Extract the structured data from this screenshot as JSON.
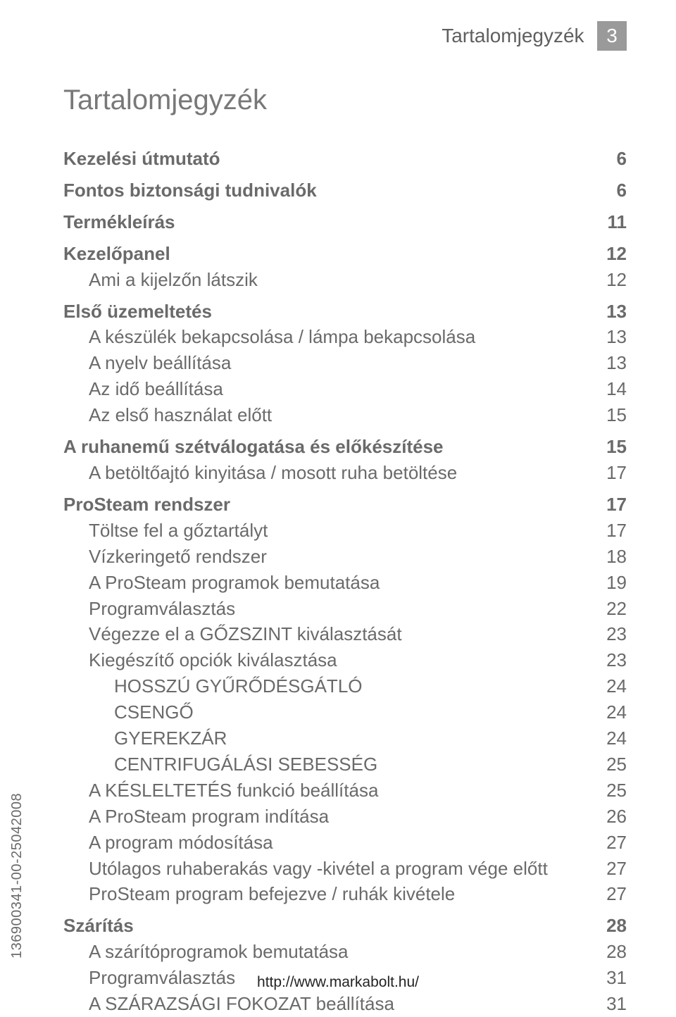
{
  "header": {
    "title": "Tartalomjegyzék",
    "page_number": "3"
  },
  "main_title": "Tartalomjegyzék",
  "vertical_code": "136900341-00-25042008",
  "footer_url": "http://www.markabolt.hu/",
  "colors": {
    "text": "#6a6a6a",
    "title": "#787878",
    "page_box_bg": "#9a9a9a",
    "page_box_fg": "#ffffff",
    "footer": "#242424",
    "background": "#ffffff"
  },
  "toc": [
    {
      "label": "Kezelési útmutató",
      "page": "6",
      "bold": true,
      "indent": 0,
      "gap": true
    },
    {
      "label": "Fontos biztonsági tudnivalók",
      "page": "6",
      "bold": true,
      "indent": 0,
      "gap": true
    },
    {
      "label": "Termékleírás",
      "page": "11",
      "bold": true,
      "indent": 0,
      "gap": true
    },
    {
      "label": "Kezelőpanel",
      "page": "12",
      "bold": true,
      "indent": 0,
      "gap": true
    },
    {
      "label": "Ami a kijelzőn látszik",
      "page": "12",
      "bold": false,
      "indent": 1
    },
    {
      "label": "Első üzemeltetés",
      "page": "13",
      "bold": true,
      "indent": 0,
      "gap": true
    },
    {
      "label": "A készülék bekapcsolása / lámpa bekapcsolása",
      "page": "13",
      "bold": false,
      "indent": 1
    },
    {
      "label": "A nyelv beállítása",
      "page": "13",
      "bold": false,
      "indent": 1
    },
    {
      "label": "Az idő beállítása",
      "page": "14",
      "bold": false,
      "indent": 1
    },
    {
      "label": "Az első használat előtt",
      "page": "15",
      "bold": false,
      "indent": 1
    },
    {
      "label": "A ruhanemű szétválogatása és előkészítése",
      "page": "15",
      "bold": true,
      "indent": 0,
      "gap": true
    },
    {
      "label": "A betöltőajtó kinyitása / mosott ruha betöltése",
      "page": "17",
      "bold": false,
      "indent": 1
    },
    {
      "label": "ProSteam rendszer",
      "page": "17",
      "bold": true,
      "indent": 0,
      "gap": true
    },
    {
      "label": "Töltse fel a gőztartályt",
      "page": "17",
      "bold": false,
      "indent": 1
    },
    {
      "label": "Vízkeringető rendszer",
      "page": "18",
      "bold": false,
      "indent": 1
    },
    {
      "label": "A ProSteam programok bemutatása",
      "page": "19",
      "bold": false,
      "indent": 1
    },
    {
      "label": "Programválasztás",
      "page": "22",
      "bold": false,
      "indent": 1
    },
    {
      "label": "Végezze el a GŐZSZINT kiválasztását",
      "page": "23",
      "bold": false,
      "indent": 1
    },
    {
      "label": "Kiegészítő opciók kiválasztása",
      "page": "23",
      "bold": false,
      "indent": 1
    },
    {
      "label": "HOSSZÚ GYŰRŐDÉSGÁTLÓ",
      "page": "24",
      "bold": false,
      "indent": 2
    },
    {
      "label": "CSENGŐ",
      "page": "24",
      "bold": false,
      "indent": 2
    },
    {
      "label": "GYEREKZÁR",
      "page": "24",
      "bold": false,
      "indent": 2
    },
    {
      "label": "CENTRIFUGÁLÁSI SEBESSÉG",
      "page": "25",
      "bold": false,
      "indent": 2
    },
    {
      "label": "A KÉSLELTETÉS funkció beállítása",
      "page": "25",
      "bold": false,
      "indent": 1
    },
    {
      "label": "A ProSteam program indítása",
      "page": "26",
      "bold": false,
      "indent": 1
    },
    {
      "label": "A program módosítása",
      "page": "27",
      "bold": false,
      "indent": 1
    },
    {
      "label": "Utólagos ruhaberakás vagy -kivétel a program vége előtt",
      "page": "27",
      "bold": false,
      "indent": 1
    },
    {
      "label": "ProSteam program befejezve / ruhák kivétele",
      "page": "27",
      "bold": false,
      "indent": 1
    },
    {
      "label": "Szárítás",
      "page": "28",
      "bold": true,
      "indent": 0,
      "gap": true
    },
    {
      "label": "A szárítóprogramok bemutatása",
      "page": "28",
      "bold": false,
      "indent": 1
    },
    {
      "label": "Programválasztás",
      "page": "31",
      "bold": false,
      "indent": 1
    },
    {
      "label": "A SZÁRAZSÁGI FOKOZAT beállítása",
      "page": "31",
      "bold": false,
      "indent": 1
    }
  ]
}
